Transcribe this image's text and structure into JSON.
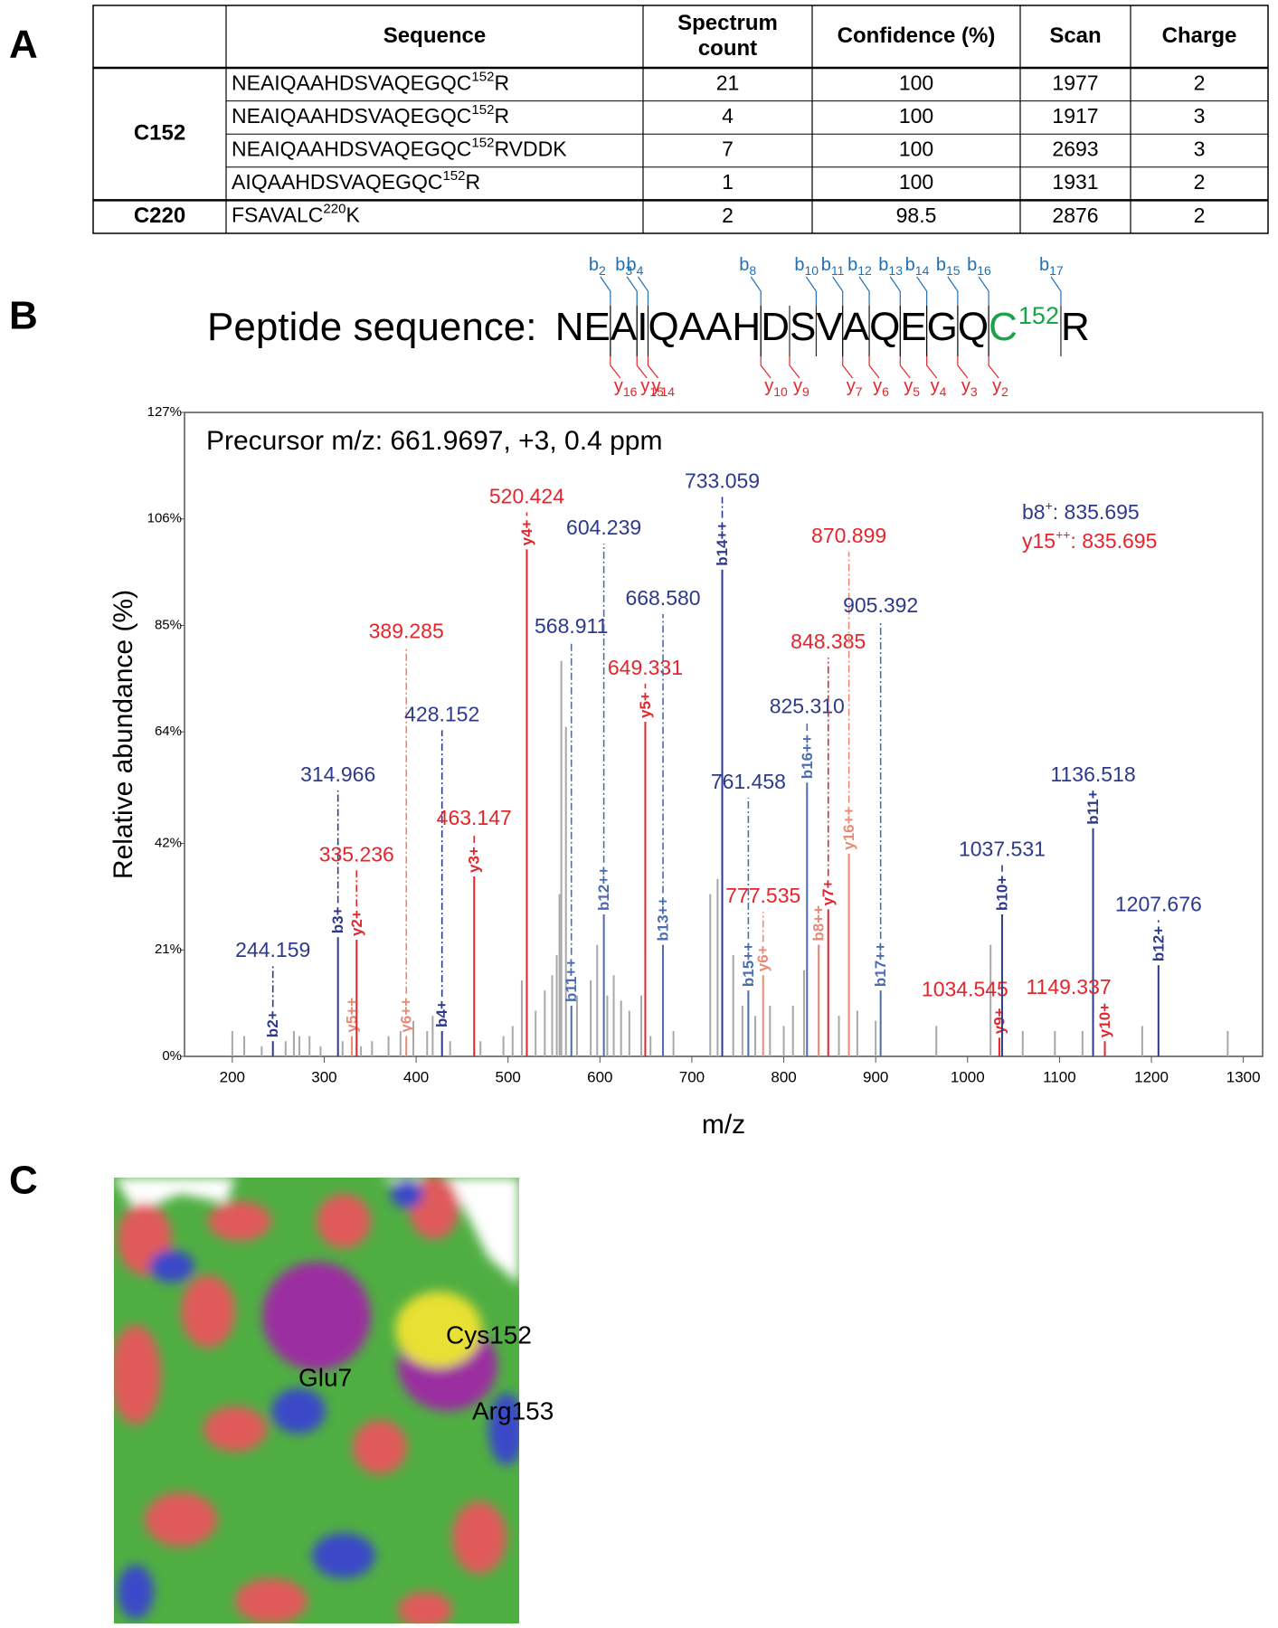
{
  "panel_labels": [
    "A",
    "B",
    "C"
  ],
  "table": {
    "columns": [
      [
        "Sequence"
      ],
      [
        "Spectrum",
        "count"
      ],
      [
        "Confidence (%)"
      ],
      [
        "Scan"
      ],
      [
        "Charge"
      ]
    ],
    "groups": [
      {
        "site": "C152",
        "rows": [
          {
            "sequence": {
              "pre": "NEAIQAAHDSVAQEGQC",
              "sup": "152",
              "post": "R"
            },
            "cells": [
              21,
              100,
              1977,
              2
            ]
          },
          {
            "sequence": {
              "pre": "NEAIQAAHDSVAQEGQC",
              "sup": "152",
              "post": "R"
            },
            "cells": [
              4,
              100,
              1917,
              3
            ]
          },
          {
            "sequence": {
              "pre": "NEAIQAAHDSVAQEGQC",
              "sup": "152",
              "post": "RVDDK"
            },
            "cells": [
              7,
              100,
              2693,
              3
            ]
          },
          {
            "sequence": {
              "pre": "AIQAAHDSVAQEGQC",
              "sup": "152",
              "post": "R"
            },
            "cells": [
              1,
              100,
              1931,
              2
            ]
          }
        ]
      },
      {
        "site": "C220",
        "rows": [
          {
            "sequence": {
              "pre": "FSAVALC",
              "sup": "220",
              "post": "K"
            },
            "cells": [
              2,
              98.5,
              2876,
              2
            ]
          }
        ]
      }
    ]
  },
  "peptide": {
    "caption": "Peptide sequence: ",
    "residues": [
      "N",
      "E",
      "A",
      "I",
      "Q",
      "A",
      "A",
      "H",
      "D",
      "S",
      "V",
      "A",
      "Q",
      "E",
      "G",
      "Q",
      "C",
      "R"
    ],
    "modified": {
      "index": 16,
      "superscript": "152",
      "color": "#1aa34a"
    },
    "b_ions": [
      [
        "b",
        "2"
      ],
      [
        "b",
        "3"
      ],
      [
        "b",
        "4"
      ],
      [
        "b",
        "8"
      ],
      [
        "b",
        "10"
      ],
      [
        "b",
        "11"
      ],
      [
        "b",
        "12"
      ],
      [
        "b",
        "13"
      ],
      [
        "b",
        "14"
      ],
      [
        "b",
        "15"
      ],
      [
        "b",
        "16"
      ],
      [
        "b",
        "17"
      ]
    ],
    "y_ions": [
      [
        "y",
        "16"
      ],
      [
        "y",
        "15"
      ],
      [
        "y",
        "14"
      ],
      [
        "y",
        "10"
      ],
      [
        "y",
        "9"
      ],
      [
        "y",
        "7"
      ],
      [
        "y",
        "6"
      ],
      [
        "y",
        "5"
      ],
      [
        "y",
        "4"
      ],
      [
        "y",
        "3"
      ],
      [
        "y",
        "2"
      ]
    ],
    "b_color": "#1f6fb5",
    "y_color": "#e3262c"
  },
  "chart_data": {
    "type": "spectrum",
    "annotation": "Precursor m/z: 661.9697, +3, 0.4 ppm",
    "note": [
      [
        "b8",
        "+",
        ": 835.695"
      ],
      [
        "y15",
        "++",
        ": 835.695"
      ]
    ],
    "note_colors": [
      "#2d3a8c",
      "#e3262c"
    ],
    "xlabel": "m/z",
    "ylabel": "Relative abundance (%)",
    "xlim": [
      148,
      1321
    ],
    "xticks": [
      200,
      300,
      400,
      500,
      600,
      700,
      800,
      900,
      1000,
      1100,
      1200,
      1300
    ],
    "ylim": [
      0,
      127
    ],
    "yticks": [
      {
        "value": 0,
        "label": "0%"
      },
      {
        "value": 21,
        "label": "21%"
      },
      {
        "value": 42,
        "label": "42%"
      },
      {
        "value": 64,
        "label": "64%"
      },
      {
        "value": 85,
        "label": "85%"
      },
      {
        "value": 106,
        "label": "106%"
      },
      {
        "value": 127,
        "label": "127%"
      }
    ],
    "background": {
      "color": "#a8a8a8",
      "x": [
        200,
        213,
        232,
        258,
        267,
        273,
        284,
        296,
        320,
        340,
        352,
        370,
        383,
        397,
        412,
        418,
        437,
        470,
        495,
        505,
        515,
        530,
        540,
        548,
        553,
        556,
        558,
        563,
        575,
        590,
        597,
        608,
        615,
        623,
        632,
        645,
        655,
        680,
        720,
        728,
        745,
        755,
        769,
        785,
        800,
        810,
        822,
        838,
        860,
        880,
        900,
        966,
        1025,
        1060,
        1095,
        1125,
        1190,
        1283
      ],
      "values": [
        5,
        4,
        2,
        3,
        5,
        4,
        4,
        2,
        3,
        2,
        3,
        4,
        5,
        7,
        5,
        8,
        3,
        3,
        4,
        6,
        15,
        9,
        13,
        16,
        20,
        32,
        78,
        65,
        12,
        15,
        22,
        12,
        16,
        11,
        9,
        12,
        4,
        5,
        32,
        35,
        20,
        10,
        8,
        10,
        6,
        10,
        17,
        22,
        8,
        9,
        7,
        6,
        22,
        5,
        5,
        5,
        6,
        5
      ]
    },
    "x": [
      244.159,
      314.966,
      330,
      335.236,
      389.285,
      428.152,
      463.147,
      520.424,
      568.911,
      604.239,
      649.331,
      668.58,
      733.059,
      761.458,
      777.535,
      825.31,
      838,
      848.385,
      870.899,
      905.392,
      1034.545,
      1037.531,
      1136.518,
      1149.337,
      1207.676
    ],
    "x_labels": [
      "244.159",
      "314.966",
      null,
      "335.236",
      "389.285",
      "428.152",
      "463.147",
      "520.424",
      "568.911",
      "604.239",
      "649.331",
      "668.580",
      "733.059",
      "761.458",
      "777.535",
      "825.310",
      null,
      "848.385",
      "870.899",
      "905.392",
      "1034.545",
      "1037.531",
      "1136.518",
      "1149.337",
      "1207.676"
    ],
    "values": [
      3,
      23.5,
      4,
      23,
      4,
      5,
      35.5,
      100,
      10,
      28,
      66,
      22,
      96,
      13,
      16,
      54,
      22,
      29,
      40,
      13,
      3.7,
      28,
      45,
      3,
      18
    ],
    "ion_labels": [
      "b2+",
      "b3+",
      "y5++",
      "y2+",
      "y6++",
      "b4+",
      "y3+",
      "y4+",
      "b11++",
      "b12++",
      "y5+",
      "b13++",
      "b14++",
      "b15++",
      "y6+",
      "b16++",
      "b8++",
      "y7+",
      "y16++",
      "b17++",
      "y9+",
      "b10+",
      "b11+",
      "y10+",
      "b12+"
    ],
    "colors": [
      "#2d3a8c",
      "#2d3a8c",
      "#e88a78",
      "#e3262c",
      "#e88a78",
      "#2d3a8c",
      "#e3262c",
      "#e3262c",
      "#4b6db0",
      "#4b6db0",
      "#e3262c",
      "#4b6db0",
      "#2d3a8c",
      "#4b6db0",
      "#e88a78",
      "#4b6db0",
      "#e88a78",
      "#e3262c",
      "#e88a78",
      "#4b6db0",
      "#e3262c",
      "#2d3a8c",
      "#2d3a8c",
      "#e3262c",
      "#2d3a8c"
    ],
    "label_colors": [
      "#2d3a8c",
      "#2d3a8c",
      "#e3262c",
      "#e3262c",
      "#e3262c",
      "#2d3a8c",
      "#e3262c",
      "#e3262c",
      "#2d3a8c",
      "#2d3a8c",
      "#e3262c",
      "#2d3a8c",
      "#2d3a8c",
      "#2d3a8c",
      "#e3262c",
      "#2d3a8c",
      "#e3262c",
      "#e3262c",
      "#e3262c",
      "#2d3a8c",
      "#e3262c",
      "#2d3a8c",
      "#2d3a8c",
      "#e3262c",
      "#2d3a8c"
    ]
  },
  "structure": {
    "labels": [
      "Cys152",
      "Glu7",
      "Arg153"
    ]
  }
}
